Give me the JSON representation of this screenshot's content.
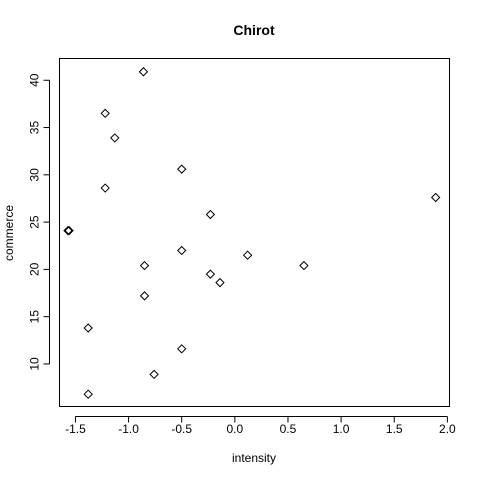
{
  "chart_data": {
    "type": "scatter",
    "title": "Chirot",
    "xlabel": "intensity",
    "ylabel": "commerce",
    "xlim": [
      -1.65,
      2.02
    ],
    "ylim": [
      5.5,
      42.3
    ],
    "xticks": [
      -1.5,
      -1.0,
      -0.5,
      0.0,
      0.5,
      1.0,
      1.5,
      2.0
    ],
    "xtick_labels": [
      "-1.5",
      "-1.0",
      "-0.5",
      "0.0",
      "0.5",
      "1.0",
      "1.5",
      "2.0"
    ],
    "yticks": [
      10,
      15,
      20,
      25,
      30,
      35,
      40
    ],
    "ytick_labels": [
      "10",
      "15",
      "20",
      "25",
      "30",
      "35",
      "40"
    ],
    "marker": "open-diamond",
    "grid": false,
    "points": [
      {
        "x": -0.86,
        "y": 40.9
      },
      {
        "x": -1.22,
        "y": 36.5
      },
      {
        "x": -1.13,
        "y": 33.9
      },
      {
        "x": -0.5,
        "y": 30.6
      },
      {
        "x": -1.22,
        "y": 28.6
      },
      {
        "x": 1.89,
        "y": 27.6
      },
      {
        "x": -0.23,
        "y": 25.8
      },
      {
        "x": -1.56,
        "y": 24.1
      },
      {
        "x": -1.57,
        "y": 24.1
      },
      {
        "x": -0.5,
        "y": 22.0
      },
      {
        "x": 0.12,
        "y": 21.5
      },
      {
        "x": -0.85,
        "y": 20.4
      },
      {
        "x": 0.65,
        "y": 20.4
      },
      {
        "x": -0.23,
        "y": 19.5
      },
      {
        "x": -0.14,
        "y": 18.6
      },
      {
        "x": -0.85,
        "y": 17.2
      },
      {
        "x": -1.38,
        "y": 13.8
      },
      {
        "x": -0.5,
        "y": 11.6
      },
      {
        "x": -0.76,
        "y": 8.9
      },
      {
        "x": -1.38,
        "y": 6.8
      }
    ]
  }
}
